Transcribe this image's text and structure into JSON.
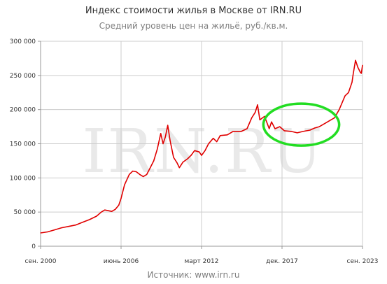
{
  "header": {
    "title": "Индекс стоимости жилья в Москве от IRN.RU",
    "subtitle": "Средний уровень цен на жильё, руб./кв.м."
  },
  "footer": {
    "source": "Источник: www.irn.ru"
  },
  "watermark": "IRN.RU",
  "colors": {
    "line": "#e00000",
    "highlight": "#22dd22",
    "grid": "#cccccc",
    "axis": "#999999"
  },
  "chart_data": {
    "type": "line",
    "title": "Индекс стоимости жилья в Москве от IRN.RU",
    "subtitle": "Средний уровень цен на жильё, руб./кв.м.",
    "xlabel": "",
    "ylabel": "",
    "x_range": [
      "2000-09",
      "2023-09"
    ],
    "ylim": [
      0,
      300000
    ],
    "grid": true,
    "y_ticks": [
      {
        "value": 0,
        "label": "0"
      },
      {
        "value": 50000,
        "label": "50 000"
      },
      {
        "value": 100000,
        "label": "100 000"
      },
      {
        "value": 150000,
        "label": "150 000"
      },
      {
        "value": 200000,
        "label": "200 000"
      },
      {
        "value": 250000,
        "label": "250 000"
      },
      {
        "value": 300000,
        "label": "300 000"
      }
    ],
    "x_ticks": [
      {
        "date": "2000-09",
        "label": "сен. 2000"
      },
      {
        "date": "2006-06",
        "label": "июнь 2006"
      },
      {
        "date": "2012-03",
        "label": "март 2012"
      },
      {
        "date": "2017-12",
        "label": "дек. 2017"
      },
      {
        "date": "2023-09",
        "label": "сен. 2023"
      }
    ],
    "series": [
      {
        "color": "#e00000",
        "points": [
          [
            "2000-09",
            19500
          ],
          [
            "2001-03",
            21000
          ],
          [
            "2001-09",
            24000
          ],
          [
            "2002-03",
            27000
          ],
          [
            "2002-09",
            29000
          ],
          [
            "2003-03",
            31000
          ],
          [
            "2003-09",
            35000
          ],
          [
            "2004-03",
            39000
          ],
          [
            "2004-09",
            44000
          ],
          [
            "2005-01",
            50000
          ],
          [
            "2005-04",
            53000
          ],
          [
            "2005-07",
            52000
          ],
          [
            "2005-10",
            51000
          ],
          [
            "2006-01",
            54000
          ],
          [
            "2006-04",
            60000
          ],
          [
            "2006-06",
            70000
          ],
          [
            "2006-09",
            90000
          ],
          [
            "2007-01",
            105000
          ],
          [
            "2007-04",
            110000
          ],
          [
            "2007-07",
            109000
          ],
          [
            "2007-10",
            105000
          ],
          [
            "2008-01",
            102000
          ],
          [
            "2008-04",
            105000
          ],
          [
            "2008-07",
            115000
          ],
          [
            "2008-10",
            125000
          ],
          [
            "2009-01",
            142000
          ],
          [
            "2009-04",
            165000
          ],
          [
            "2009-06",
            150000
          ],
          [
            "2009-08",
            160000
          ],
          [
            "2009-10",
            177000
          ],
          [
            "2009-12",
            155000
          ],
          [
            "2010-03",
            130000
          ],
          [
            "2010-06",
            122000
          ],
          [
            "2010-08",
            115000
          ],
          [
            "2010-11",
            123000
          ],
          [
            "2011-03",
            128000
          ],
          [
            "2011-06",
            133000
          ],
          [
            "2011-09",
            140000
          ],
          [
            "2012-01",
            138000
          ],
          [
            "2012-03",
            133000
          ],
          [
            "2012-06",
            140000
          ],
          [
            "2012-09",
            150000
          ],
          [
            "2013-01",
            158000
          ],
          [
            "2013-04",
            153000
          ],
          [
            "2013-07",
            162000
          ],
          [
            "2014-01",
            163000
          ],
          [
            "2014-06",
            168000
          ],
          [
            "2015-01",
            168000
          ],
          [
            "2015-06",
            172000
          ],
          [
            "2015-10",
            188000
          ],
          [
            "2016-01",
            196000
          ],
          [
            "2016-03",
            207000
          ],
          [
            "2016-05",
            185000
          ],
          [
            "2016-09",
            190000
          ],
          [
            "2017-01",
            172000
          ],
          [
            "2017-03",
            182000
          ],
          [
            "2017-06",
            172000
          ],
          [
            "2017-10",
            175000
          ],
          [
            "2018-02",
            169000
          ],
          [
            "2018-08",
            168000
          ],
          [
            "2019-01",
            166000
          ],
          [
            "2019-06",
            168000
          ],
          [
            "2019-12",
            170000
          ],
          [
            "2020-04",
            173000
          ],
          [
            "2020-08",
            175000
          ],
          [
            "2021-01",
            180000
          ],
          [
            "2021-06",
            185000
          ],
          [
            "2021-09",
            188000
          ],
          [
            "2022-01",
            200000
          ],
          [
            "2022-06",
            220000
          ],
          [
            "2022-09",
            225000
          ],
          [
            "2022-12",
            240000
          ],
          [
            "2023-01",
            252000
          ],
          [
            "2023-03",
            272000
          ],
          [
            "2023-05",
            262000
          ],
          [
            "2023-07",
            255000
          ],
          [
            "2023-08",
            253000
          ],
          [
            "2023-09",
            265000
          ]
        ]
      }
    ],
    "annotations": [
      {
        "type": "ellipse",
        "color": "#22dd22",
        "from": "2016-08",
        "to": "2022-01",
        "y_center": 178000
      }
    ]
  }
}
